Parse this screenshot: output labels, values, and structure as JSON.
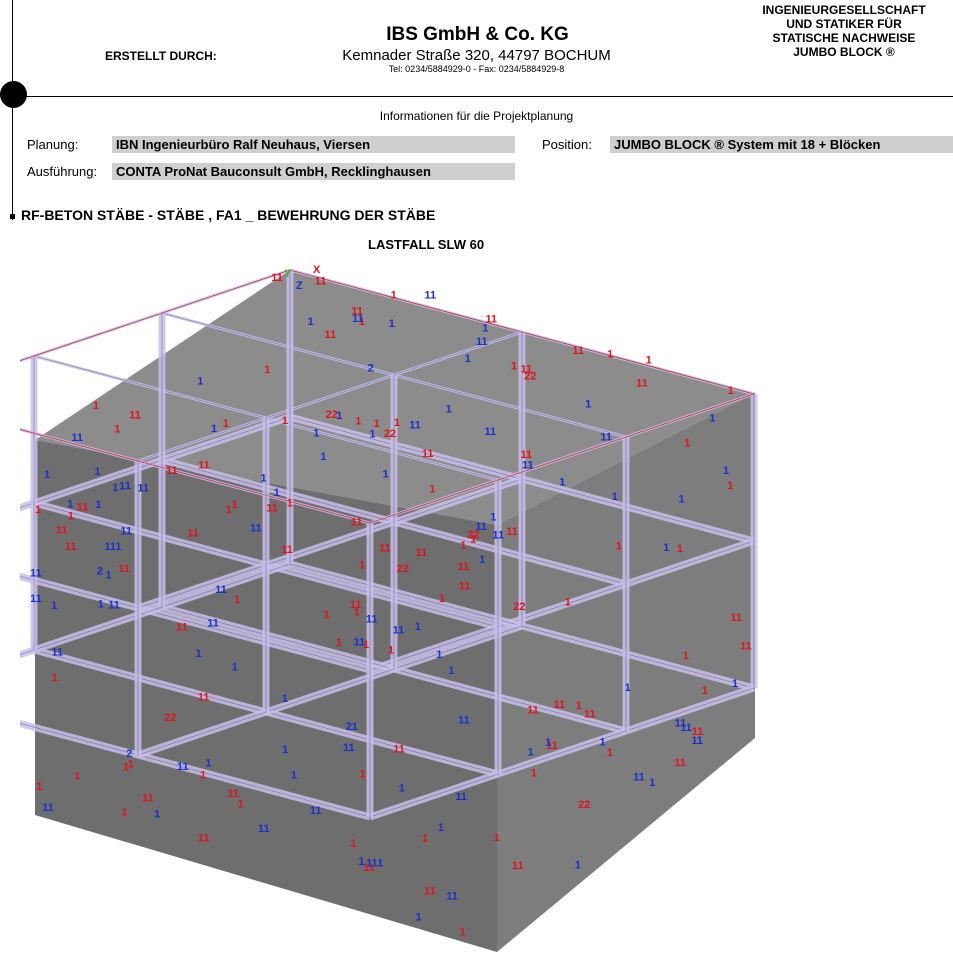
{
  "header": {
    "created_by_label": "ERSTELLT DURCH:",
    "company_name": "IBS GmbH & Co. KG",
    "company_address": "Kemnader Straße 320, 44797 BOCHUM",
    "company_phone": "Tel: 0234/5884929-0 - Fax: 0234/5884929-8",
    "right_lines": [
      "INGENIEURGESELLSCHAFT",
      "UND STATIKER FÜR",
      "STATISCHE NACHWEISE",
      "JUMBO BLOCK ®"
    ]
  },
  "info": {
    "heading": "Informationen für die Projektplanung",
    "planung_label": "Planung:",
    "planung_value": "IBN Ingenieurbüro Ralf Neuhaus, Viersen",
    "position_label": "Position:",
    "position_value": "JUMBO BLOCK ® System mit 18 + Blöcken",
    "ausfuehrung_label": "Ausführung:",
    "ausfuehrung_value": "CONTA ProNat Bauconsult GmbH, Recklinghausen"
  },
  "section_title": "RF-BETON STÄBE - STÄBE , FA1 _ BEWEHRUNG DER STÄBE",
  "drawing": {
    "title": "LASTFALL SLW 60",
    "axis_labels": [
      "Y",
      "Z",
      "X"
    ],
    "colors": {
      "top_face": "#8c8c8c",
      "left_face": "#6d6d6d",
      "right_face": "#7b7b7b",
      "red_marker": "#e0141e",
      "blue_marker": "#1a2fd0",
      "beam": "#c8c0e6"
    },
    "red_markers": [
      "1",
      "1",
      "1",
      "1",
      "1",
      "1",
      "11",
      "1",
      "11",
      "1",
      "1",
      "11",
      "1",
      "1",
      "11",
      "1",
      "1",
      "1",
      "11",
      "11",
      "1",
      "11",
      "11",
      "1",
      "11",
      "1",
      "1",
      "1",
      "11",
      "11",
      "1",
      "11",
      "11",
      "1",
      "1",
      "11",
      "11",
      "11",
      "1",
      "1",
      "11",
      "11",
      "11",
      "1",
      "1",
      "1",
      "1",
      "11",
      "11",
      "1",
      "11",
      "11",
      "11",
      "1",
      "1",
      "11",
      "1",
      "11",
      "1",
      "11",
      "11",
      "11",
      "22",
      "11",
      "1",
      "11",
      "1",
      "11",
      "11",
      "11",
      "22",
      "22",
      "11",
      "1",
      "1",
      "22",
      "11",
      "11",
      "11",
      "22",
      "1",
      "22",
      "11",
      "11",
      "1",
      "22",
      "1",
      "11",
      "1",
      "1",
      "22",
      "11",
      "1",
      "11",
      "1",
      "1",
      "11",
      "1",
      "1",
      "1",
      "1",
      "1",
      "1",
      "1",
      "1"
    ],
    "blue_markers": [
      "1",
      "2",
      "1",
      "1",
      "1",
      "11",
      "11",
      "1",
      "11",
      "1",
      "11",
      "1",
      "1",
      "1",
      "1",
      "11",
      "2",
      "1",
      "11",
      "1",
      "11",
      "1",
      "11",
      "1",
      "1",
      "21",
      "1",
      "11",
      "1",
      "1",
      "1",
      "1",
      "1",
      "11",
      "11",
      "1",
      "1",
      "11",
      "1",
      "111",
      "11",
      "11",
      "11",
      "1",
      "1",
      "11",
      "1",
      "111",
      "11",
      "1",
      "1",
      "11",
      "1",
      "1",
      "11",
      "1",
      "1",
      "11",
      "11",
      "11",
      "1",
      "11",
      "11",
      "1",
      "11",
      "1",
      "1",
      "1",
      "2",
      "1",
      "11",
      "11",
      "1",
      "11",
      "1",
      "1",
      "11",
      "11",
      "1",
      "11",
      "1",
      "1",
      "11",
      "1",
      "1",
      "11",
      "1",
      "11",
      "1",
      "1",
      "1",
      "1",
      "1",
      "1"
    ]
  }
}
